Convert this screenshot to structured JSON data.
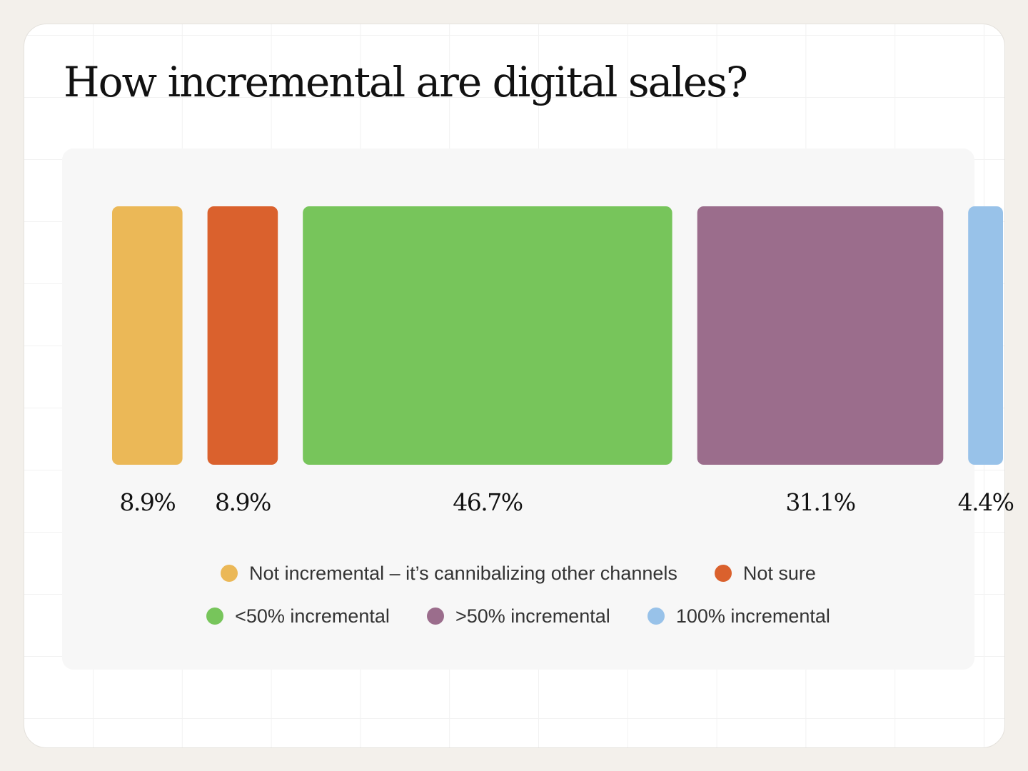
{
  "chart_data": {
    "type": "bar",
    "title": "How incremental are digital sales?",
    "categories": [
      "Not incremental – it’s cannibalizing other channels",
      "Not sure",
      "<50% incremental",
      ">50% incremental",
      "100% incremental"
    ],
    "values": [
      8.9,
      8.9,
      46.7,
      31.1,
      4.4
    ],
    "value_labels": [
      "8.9%",
      "8.9%",
      "46.7%",
      "31.1%",
      "4.4%"
    ],
    "colors": [
      "#EBB857",
      "#DA612D",
      "#77C55B",
      "#9B6D8C",
      "#98C2E9"
    ],
    "encoding": "bar width proportional to value",
    "grid": false,
    "legend_position": "bottom"
  },
  "legend_rows": [
    [
      {
        "label": "Not incremental – it’s cannibalizing other channels",
        "color": "#EBB857"
      },
      {
        "label": "Not sure",
        "color": "#DA612D"
      }
    ],
    [
      {
        "label": "<50% incremental",
        "color": "#77C55B"
      },
      {
        "label": ">50% incremental",
        "color": "#9B6D8C"
      },
      {
        "label": "100% incremental",
        "color": "#98C2E9"
      }
    ]
  ]
}
